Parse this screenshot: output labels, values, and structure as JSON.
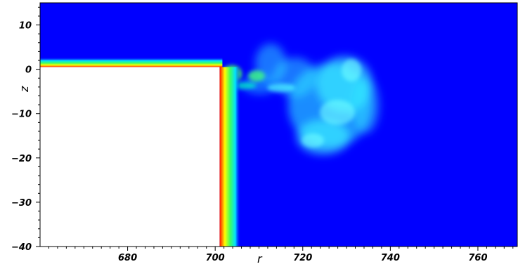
{
  "chart_data": {
    "type": "heatmap",
    "title": "",
    "xlabel": "r",
    "ylabel": "z",
    "xlim": [
      660,
      769
    ],
    "ylim": [
      -40,
      15
    ],
    "x_ticks": [
      680,
      700,
      720,
      740,
      760
    ],
    "y_ticks": [
      10,
      0,
      -10,
      -20,
      -30,
      -40
    ],
    "x_tick_labels": [
      "680",
      "700",
      "720",
      "740",
      "760"
    ],
    "y_tick_labels": [
      "10",
      "0",
      "−10",
      "−20",
      "−30",
      "−40"
    ],
    "grid": false,
    "colormap": "jet",
    "colors": {
      "background": "#0000ff",
      "obstacle": "#ffffff",
      "hot": "#ff0000",
      "warm": "#ffff00",
      "mid": "#00ff80",
      "cool": "#00ffff"
    },
    "obstacle_region": {
      "r": [
        660,
        701
      ],
      "z": [
        -40,
        0.5
      ]
    }
  }
}
